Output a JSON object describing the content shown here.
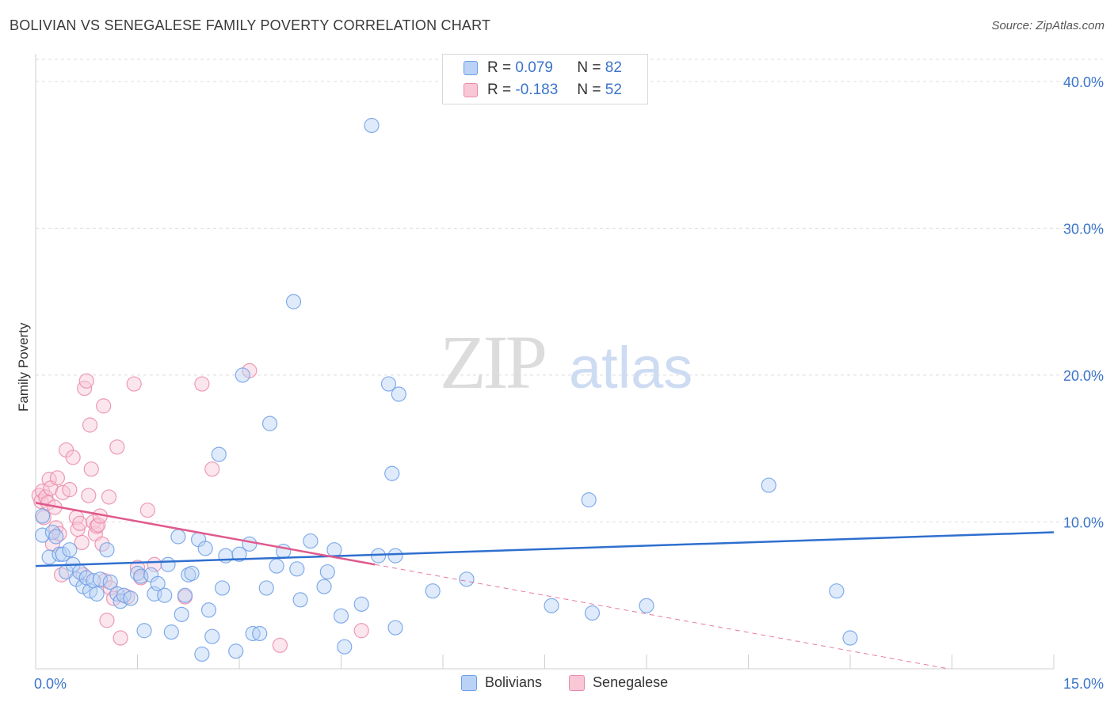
{
  "title": "BOLIVIAN VS SENEGALESE FAMILY POVERTY CORRELATION CHART",
  "source": "Source: ZipAtlas.com",
  "watermark": {
    "zip": "ZIP",
    "atlas": "atlas"
  },
  "legend_top": [
    {
      "r_label": "R =",
      "r_value": "0.079",
      "n_label": "N =",
      "n_value": "82"
    },
    {
      "r_label": "R =",
      "r_value": "-0.183",
      "n_label": "N =",
      "n_value": "52"
    }
  ],
  "legend_bottom": [
    "Bolivians",
    "Senegalese"
  ],
  "colors": {
    "blue": "#6d9ee8",
    "blue_fill": "#b9d2f5",
    "blue_line": "#2f6fcf",
    "pink": "#ea8aa8",
    "pink_fill": "#f9c7d6",
    "pink_line": "#e05a8c",
    "tick_label": "#3a74c9"
  },
  "chart_data": {
    "type": "scatter",
    "title": "BOLIVIAN VS SENEGALESE FAMILY POVERTY CORRELATION CHART",
    "xlabel": "",
    "ylabel": "Family Poverty",
    "xlim": [
      0,
      15
    ],
    "ylim": [
      0,
      41.5
    ],
    "x_tick_labels": [
      "0.0%",
      "15.0%"
    ],
    "y_ticks": [
      10,
      20,
      30,
      40
    ],
    "y_tick_labels": [
      "10.0%",
      "20.0%",
      "30.0%",
      "40.0%"
    ],
    "grid": true,
    "legend_placement": "top-center",
    "series": [
      {
        "name": "Bolivians",
        "r": 0.079,
        "n": 82,
        "trend": {
          "x": [
            0,
            15
          ],
          "y": [
            7.0,
            9.3
          ]
        },
        "points": [
          [
            0.1,
            10.4
          ],
          [
            0.1,
            9.1
          ],
          [
            0.2,
            7.6
          ],
          [
            0.25,
            9.3
          ],
          [
            0.3,
            9.0
          ],
          [
            0.35,
            7.8
          ],
          [
            0.4,
            7.8
          ],
          [
            0.45,
            6.6
          ],
          [
            0.5,
            8.1
          ],
          [
            0.55,
            7.1
          ],
          [
            0.6,
            6.1
          ],
          [
            0.65,
            6.6
          ],
          [
            0.7,
            5.6
          ],
          [
            0.75,
            6.2
          ],
          [
            0.8,
            5.3
          ],
          [
            0.85,
            6.0
          ],
          [
            0.9,
            5.1
          ],
          [
            0.95,
            6.1
          ],
          [
            1.05,
            8.1
          ],
          [
            1.1,
            5.9
          ],
          [
            1.2,
            5.1
          ],
          [
            1.25,
            4.6
          ],
          [
            1.3,
            5.0
          ],
          [
            1.4,
            4.8
          ],
          [
            1.5,
            6.5
          ],
          [
            1.55,
            6.3
          ],
          [
            1.6,
            2.6
          ],
          [
            1.7,
            6.4
          ],
          [
            1.75,
            5.1
          ],
          [
            1.8,
            5.8
          ],
          [
            1.9,
            5.0
          ],
          [
            1.95,
            7.1
          ],
          [
            2.0,
            2.5
          ],
          [
            2.1,
            9.0
          ],
          [
            2.15,
            3.7
          ],
          [
            2.2,
            5.0
          ],
          [
            2.25,
            6.4
          ],
          [
            2.3,
            6.5
          ],
          [
            2.4,
            8.8
          ],
          [
            2.45,
            1.0
          ],
          [
            2.5,
            8.2
          ],
          [
            2.55,
            4.0
          ],
          [
            2.6,
            2.2
          ],
          [
            2.7,
            14.6
          ],
          [
            2.75,
            5.5
          ],
          [
            2.8,
            7.7
          ],
          [
            2.95,
            1.2
          ],
          [
            3.0,
            7.8
          ],
          [
            3.05,
            20.0
          ],
          [
            3.15,
            8.5
          ],
          [
            3.2,
            2.4
          ],
          [
            3.3,
            2.4
          ],
          [
            3.4,
            5.5
          ],
          [
            3.45,
            16.7
          ],
          [
            3.55,
            7.0
          ],
          [
            3.65,
            8.0
          ],
          [
            3.8,
            25.0
          ],
          [
            3.85,
            6.8
          ],
          [
            3.9,
            4.7
          ],
          [
            4.05,
            8.7
          ],
          [
            4.25,
            5.6
          ],
          [
            4.3,
            6.6
          ],
          [
            4.4,
            8.1
          ],
          [
            4.5,
            3.6
          ],
          [
            4.55,
            1.5
          ],
          [
            4.8,
            4.4
          ],
          [
            4.95,
            37.0
          ],
          [
            5.05,
            7.7
          ],
          [
            5.2,
            19.4
          ],
          [
            5.25,
            13.3
          ],
          [
            5.3,
            7.7
          ],
          [
            5.35,
            18.7
          ],
          [
            5.3,
            2.8
          ],
          [
            5.85,
            5.3
          ],
          [
            6.35,
            6.1
          ],
          [
            7.6,
            4.3
          ],
          [
            8.15,
            11.5
          ],
          [
            8.2,
            3.8
          ],
          [
            9.0,
            4.3
          ],
          [
            10.8,
            12.5
          ],
          [
            11.8,
            5.3
          ],
          [
            12.0,
            2.1
          ]
        ]
      },
      {
        "name": "Senegalese",
        "r": -0.183,
        "n": 52,
        "trend": {
          "x": [
            0,
            5.0
          ],
          "y": [
            11.3,
            7.1
          ]
        },
        "trend_extension": {
          "x": [
            5.0,
            15
          ],
          "y": [
            7.1,
            -1.3
          ]
        },
        "points": [
          [
            0.05,
            11.8
          ],
          [
            0.08,
            11.4
          ],
          [
            0.1,
            12.1
          ],
          [
            0.12,
            10.3
          ],
          [
            0.15,
            11.7
          ],
          [
            0.18,
            11.3
          ],
          [
            0.2,
            12.9
          ],
          [
            0.22,
            12.3
          ],
          [
            0.25,
            8.5
          ],
          [
            0.28,
            11.0
          ],
          [
            0.3,
            9.6
          ],
          [
            0.32,
            13.0
          ],
          [
            0.35,
            9.2
          ],
          [
            0.38,
            6.4
          ],
          [
            0.4,
            12.0
          ],
          [
            0.45,
            14.9
          ],
          [
            0.5,
            12.2
          ],
          [
            0.55,
            14.4
          ],
          [
            0.6,
            10.3
          ],
          [
            0.62,
            9.5
          ],
          [
            0.65,
            9.9
          ],
          [
            0.68,
            8.6
          ],
          [
            0.7,
            6.4
          ],
          [
            0.72,
            19.1
          ],
          [
            0.75,
            19.6
          ],
          [
            0.78,
            11.8
          ],
          [
            0.8,
            16.6
          ],
          [
            0.82,
            13.6
          ],
          [
            0.85,
            10.0
          ],
          [
            0.88,
            9.2
          ],
          [
            0.9,
            9.7
          ],
          [
            0.92,
            9.8
          ],
          [
            0.95,
            10.4
          ],
          [
            0.98,
            8.5
          ],
          [
            1.0,
            17.9
          ],
          [
            1.02,
            6.0
          ],
          [
            1.05,
            3.3
          ],
          [
            1.08,
            11.7
          ],
          [
            1.1,
            5.5
          ],
          [
            1.15,
            4.8
          ],
          [
            1.2,
            15.1
          ],
          [
            1.25,
            2.1
          ],
          [
            1.35,
            4.9
          ],
          [
            1.45,
            19.4
          ],
          [
            1.5,
            6.9
          ],
          [
            1.55,
            6.2
          ],
          [
            1.65,
            10.8
          ],
          [
            1.75,
            7.1
          ],
          [
            2.2,
            4.9
          ],
          [
            2.45,
            19.4
          ],
          [
            2.6,
            13.6
          ],
          [
            3.15,
            20.3
          ],
          [
            3.6,
            1.6
          ],
          [
            4.8,
            2.6
          ]
        ]
      }
    ]
  }
}
